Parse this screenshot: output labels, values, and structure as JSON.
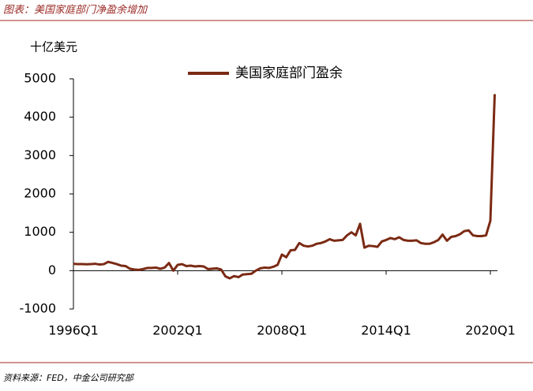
{
  "chart_data": {
    "type": "line",
    "title": "图表：美国家庭部门净盈余增加",
    "y_label": "十亿美元",
    "source": "资料来源：FED，中金公司研究部",
    "categories": [
      "1996Q1",
      null,
      null,
      null,
      null,
      null,
      null,
      null,
      null,
      null,
      null,
      null,
      null,
      null,
      null,
      null,
      null,
      null,
      null,
      null,
      null,
      null,
      null,
      null,
      "2002Q1",
      null,
      null,
      null,
      null,
      null,
      null,
      null,
      null,
      null,
      null,
      null,
      null,
      null,
      null,
      null,
      null,
      null,
      null,
      null,
      null,
      null,
      null,
      null,
      "2008Q1",
      null,
      null,
      null,
      null,
      null,
      null,
      null,
      null,
      null,
      null,
      null,
      null,
      null,
      null,
      null,
      null,
      null,
      null,
      null,
      null,
      null,
      null,
      null,
      "2014Q1",
      null,
      null,
      null,
      null,
      null,
      null,
      null,
      null,
      null,
      null,
      null,
      null,
      null,
      null,
      null,
      null,
      null,
      null,
      null,
      null,
      null,
      null,
      null,
      "2020Q1",
      null
    ],
    "series": [
      {
        "name": "美国家庭部门盈余",
        "color": "#7b2a14",
        "values": [
          180,
          170,
          170,
          165,
          170,
          180,
          160,
          170,
          230,
          200,
          170,
          130,
          120,
          50,
          30,
          20,
          40,
          70,
          70,
          80,
          50,
          80,
          200,
          0,
          150,
          170,
          120,
          130,
          110,
          120,
          110,
          40,
          50,
          60,
          30,
          -150,
          -200,
          -140,
          -170,
          -100,
          -90,
          -80,
          0,
          60,
          80,
          70,
          100,
          150,
          420,
          350,
          530,
          540,
          720,
          650,
          630,
          650,
          700,
          720,
          760,
          820,
          780,
          790,
          800,
          920,
          1000,
          920,
          1220,
          600,
          650,
          640,
          620,
          760,
          800,
          850,
          820,
          870,
          800,
          780,
          780,
          790,
          720,
          700,
          700,
          740,
          800,
          940,
          780,
          880,
          900,
          950,
          1030,
          1050,
          920,
          900,
          900,
          920,
          1300,
          4600
        ]
      }
    ],
    "ylim": [
      -1000,
      5000
    ],
    "yticks": [
      -1000,
      0,
      1000,
      2000,
      3000,
      4000,
      5000
    ],
    "legend": "top"
  }
}
